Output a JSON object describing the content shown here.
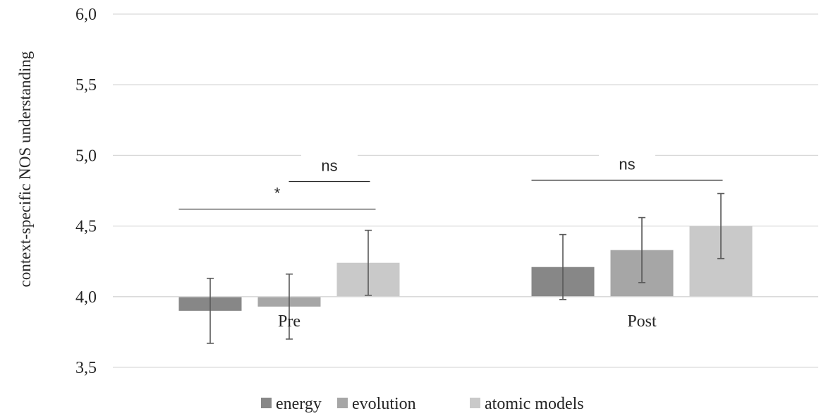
{
  "chart_data": {
    "type": "bar",
    "title": "",
    "xlabel": "",
    "ylabel": "context-specific NOS understanding",
    "categories": [
      "Pre",
      "Post"
    ],
    "series": [
      {
        "name": "energy",
        "values": [
          3.9,
          4.21
        ],
        "error": [
          0.23,
          0.23
        ],
        "color": "#878787"
      },
      {
        "name": "evolution",
        "values": [
          3.93,
          4.33
        ],
        "error": [
          0.23,
          0.23
        ],
        "color": "#a6a6a6"
      },
      {
        "name": "atomic models",
        "values": [
          4.24,
          4.5
        ],
        "error": [
          0.23,
          0.23
        ],
        "color": "#c9c9c9"
      }
    ],
    "baseline": 4.0,
    "ylim": [
      3.5,
      6.0
    ],
    "yticks": [
      3.5,
      4.0,
      4.5,
      5.0,
      5.5,
      6.0
    ],
    "ytick_labels": [
      "3,5",
      "4,0",
      "4,5",
      "5,0",
      "5,5",
      "6,0"
    ],
    "grid": true,
    "legend_position": "bottom",
    "annotations": [
      {
        "label": "ns",
        "category": "Pre",
        "from_series": 1,
        "to_series": 2,
        "y": 4.815
      },
      {
        "label": "*",
        "category": "Pre",
        "from_series": 0,
        "to_series": 2,
        "y": 4.62
      },
      {
        "label": "ns",
        "category": "Post",
        "from_series": 0,
        "to_series": 2,
        "y": 4.825
      }
    ]
  }
}
